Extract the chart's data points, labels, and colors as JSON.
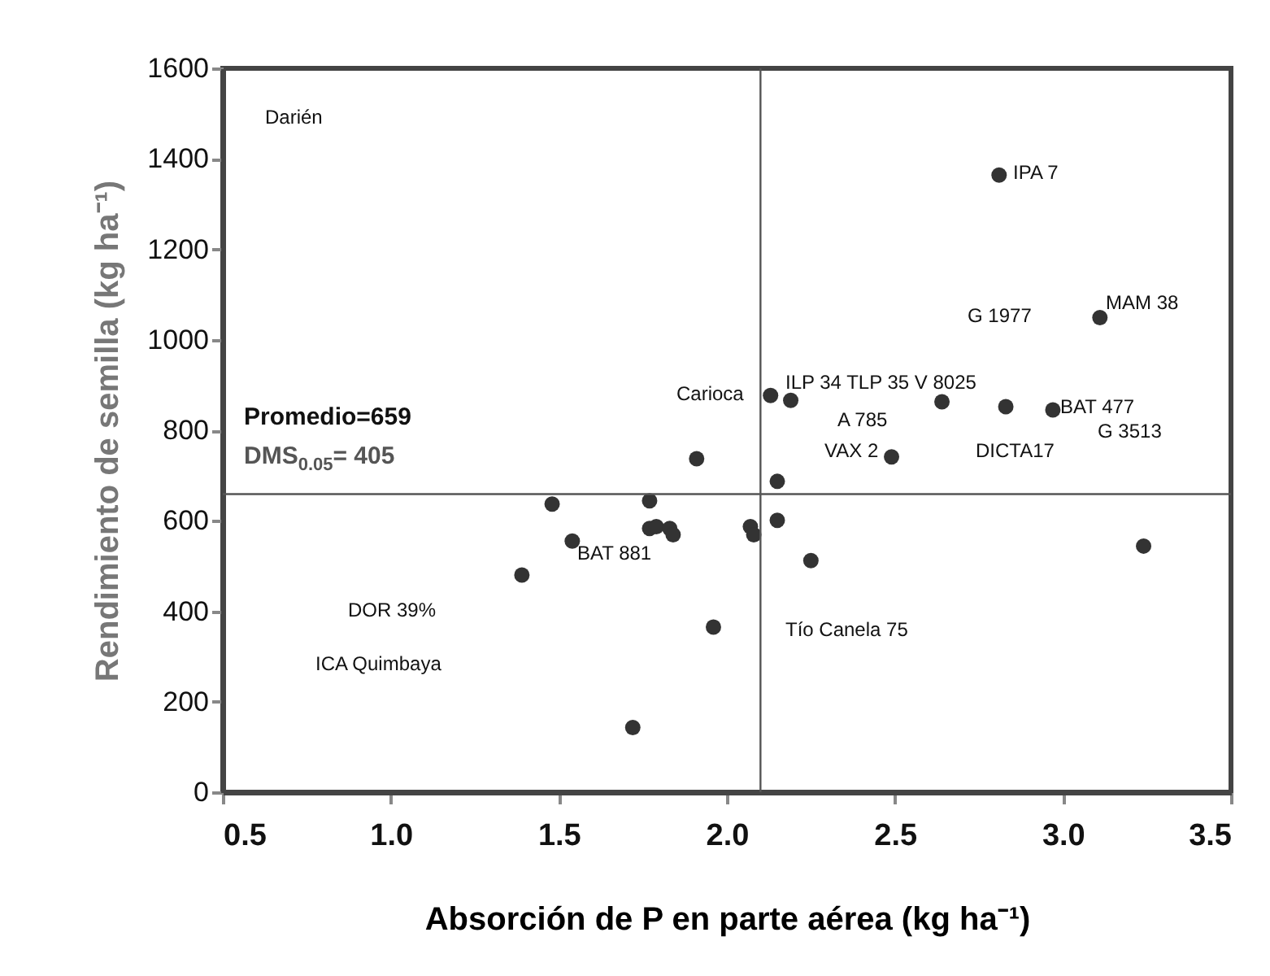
{
  "chart_data": {
    "type": "scatter",
    "xlabel": "Absorción de P en parte aérea (kg ha⁻¹)",
    "ylabel": "Rendimiento de semilla (kg ha⁻¹)",
    "xlim": [
      0.5,
      3.5
    ],
    "xticks": [
      0.5,
      {
        "value": 1,
        "label": "1.0"
      },
      1.5,
      {
        "value": 2,
        "label": "2.0"
      },
      2.5,
      {
        "value": 3,
        "label": "3.0"
      },
      3.5
    ],
    "ylim": [
      0,
      1600
    ],
    "yticks": [
      0,
      200,
      400,
      600,
      800,
      1000,
      1200,
      1400,
      1600
    ],
    "grid": false,
    "marker": "circle",
    "series": [
      {
        "color": "#333333",
        "x": [
          1.91,
          1.48,
          1.77,
          1.77,
          1.79,
          1.83,
          1.84,
          1.54,
          1.39,
          1.96,
          1.72,
          2.07,
          2.08,
          2.15,
          2.15,
          2.13,
          2.81,
          3.11,
          2.19,
          2.64,
          2.83,
          2.97,
          3.24,
          2.25,
          2.49
        ],
        "values": [
          737,
          637,
          644,
          583,
          587,
          583,
          569,
          555,
          480,
          365,
          143,
          587,
          569,
          687,
          601,
          877,
          1364,
          1049,
          866,
          863,
          852,
          845,
          544,
          512,
          741
        ]
      }
    ],
    "ref_lines": [
      {
        "axis": "y",
        "value": 659
      },
      {
        "axis": "x",
        "value": 2.1
      }
    ],
    "annotations": [
      "Darién",
      "IPA 7",
      "MAM 38",
      "G 1977",
      "ILP 34 TLP 35 V 8025",
      "Carioca",
      "BAT 477",
      "A 785",
      "G 3513",
      "VAX 2",
      "DICTA17",
      "BAT 881",
      "Tío Canela 75",
      "DOR 39%",
      "ICA Quimbaya",
      "Promedio=659",
      "DMS$_{0.05}$= 405"
    ]
  }
}
